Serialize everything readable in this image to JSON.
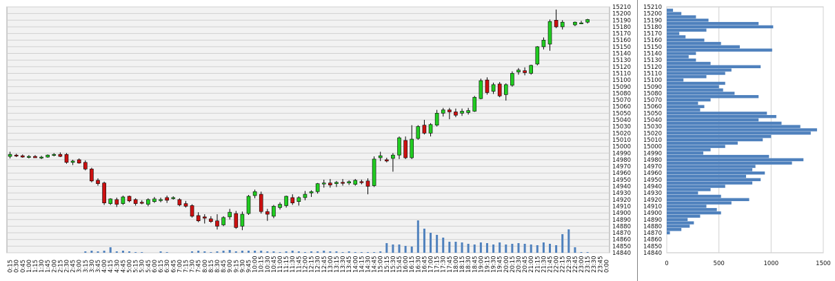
{
  "chart_data": [
    {
      "type": "candlestick",
      "interval": "15min",
      "yticks": [
        14840,
        14850,
        14860,
        14870,
        14880,
        14890,
        14900,
        14910,
        14920,
        14930,
        14940,
        14950,
        14960,
        14970,
        14980,
        14990,
        15000,
        15010,
        15020,
        15030,
        15040,
        15050,
        15060,
        15070,
        15080,
        15090,
        15100,
        15110,
        15120,
        15130,
        15140,
        15150,
        15160,
        15170,
        15180,
        15190,
        15200,
        15210
      ],
      "ylim": [
        14840,
        15210
      ],
      "xticks": [
        "0:15",
        "0:30",
        "0:45",
        "1:00",
        "1:15",
        "1:30",
        "1:45",
        "2:00",
        "2:15",
        "2:30",
        "2:45",
        "3:00",
        "3:15",
        "3:30",
        "3:45",
        "4:00",
        "4:15",
        "4:30",
        "4:45",
        "5:00",
        "5:15",
        "5:30",
        "5:45",
        "6:00",
        "6:15",
        "6:30",
        "6:45",
        "7:00",
        "7:15",
        "7:30",
        "7:45",
        "8:00",
        "8:15",
        "8:30",
        "8:45",
        "9:00",
        "9:15",
        "9:30",
        "9:45",
        "10:00",
        "10:15",
        "10:30",
        "10:45",
        "11:00",
        "11:15",
        "11:30",
        "11:45",
        "12:00",
        "12:15",
        "12:30",
        "12:45",
        "13:00",
        "13:15",
        "13:30",
        "13:45",
        "14:00",
        "14:15",
        "14:30",
        "14:45",
        "15:00",
        "15:15",
        "15:30",
        "15:45",
        "16:00",
        "16:15",
        "16:30",
        "16:45",
        "17:00",
        "17:15",
        "17:30",
        "17:45",
        "18:00",
        "18:15",
        "18:30",
        "18:45",
        "19:00",
        "19:15",
        "19:30",
        "19:45",
        "20:00",
        "20:15",
        "20:30",
        "20:45",
        "21:00",
        "21:15",
        "21:30",
        "21:45",
        "22:00",
        "22:15",
        "22:30",
        "22:45",
        "23:00",
        "23:15",
        "23:30",
        "23:45",
        "0:00"
      ],
      "grid": true,
      "up_color": "#22cc22",
      "down_color": "#cc1111",
      "volume_color": "#4f81bd",
      "candles": [
        {
          "o": 14985,
          "h": 14992,
          "l": 14982,
          "c": 14988
        },
        {
          "o": 14987,
          "h": 14989,
          "l": 14984,
          "c": 14986
        },
        {
          "o": 14986,
          "h": 14988,
          "l": 14983,
          "c": 14984
        },
        {
          "o": 14984,
          "h": 14987,
          "l": 14982,
          "c": 14985
        },
        {
          "o": 14985,
          "h": 14987,
          "l": 14983,
          "c": 14983
        },
        {
          "o": 14983,
          "h": 14986,
          "l": 14981,
          "c": 14984
        },
        {
          "o": 14984,
          "h": 14988,
          "l": 14983,
          "c": 14987
        },
        {
          "o": 14987,
          "h": 14990,
          "l": 14985,
          "c": 14988
        },
        {
          "o": 14988,
          "h": 14991,
          "l": 14984,
          "c": 14985
        },
        {
          "o": 14988,
          "h": 14990,
          "l": 14974,
          "c": 14976
        },
        {
          "o": 14976,
          "h": 14980,
          "l": 14972,
          "c": 14978
        },
        {
          "o": 14980,
          "h": 14982,
          "l": 14974,
          "c": 14975
        },
        {
          "o": 14976,
          "h": 14979,
          "l": 14964,
          "c": 14966
        },
        {
          "o": 14966,
          "h": 14968,
          "l": 14946,
          "c": 14948
        },
        {
          "o": 14949,
          "h": 14952,
          "l": 14941,
          "c": 14944
        },
        {
          "o": 14945,
          "h": 14947,
          "l": 14912,
          "c": 14915
        },
        {
          "o": 14914,
          "h": 14922,
          "l": 14912,
          "c": 14921
        },
        {
          "o": 14920,
          "h": 14923,
          "l": 14909,
          "c": 14913
        },
        {
          "o": 14914,
          "h": 14926,
          "l": 14912,
          "c": 14924
        },
        {
          "o": 14925,
          "h": 14926,
          "l": 14916,
          "c": 14918
        },
        {
          "o": 14920,
          "h": 14922,
          "l": 14911,
          "c": 14914
        },
        {
          "o": 14916,
          "h": 14919,
          "l": 14913,
          "c": 14915
        },
        {
          "o": 14913,
          "h": 14922,
          "l": 14910,
          "c": 14920
        },
        {
          "o": 14917,
          "h": 14924,
          "l": 14915,
          "c": 14921
        },
        {
          "o": 14919,
          "h": 14923,
          "l": 14916,
          "c": 14920
        },
        {
          "o": 14923,
          "h": 14926,
          "l": 14915,
          "c": 14919
        },
        {
          "o": 14922,
          "h": 14925,
          "l": 14920,
          "c": 14923
        },
        {
          "o": 14920,
          "h": 14922,
          "l": 14910,
          "c": 14912
        },
        {
          "o": 14914,
          "h": 14918,
          "l": 14908,
          "c": 14910
        },
        {
          "o": 14911,
          "h": 14913,
          "l": 14893,
          "c": 14895
        },
        {
          "o": 14896,
          "h": 14901,
          "l": 14886,
          "c": 14888
        },
        {
          "o": 14894,
          "h": 14898,
          "l": 14884,
          "c": 14892
        },
        {
          "o": 14891,
          "h": 14895,
          "l": 14885,
          "c": 14887
        },
        {
          "o": 14888,
          "h": 14898,
          "l": 14875,
          "c": 14880
        },
        {
          "o": 14882,
          "h": 14895,
          "l": 14880,
          "c": 14893
        },
        {
          "o": 14894,
          "h": 14906,
          "l": 14890,
          "c": 14901
        },
        {
          "o": 14899,
          "h": 14903,
          "l": 14876,
          "c": 14878
        },
        {
          "o": 14880,
          "h": 14902,
          "l": 14874,
          "c": 14898
        },
        {
          "o": 14899,
          "h": 14927,
          "l": 14897,
          "c": 14925
        },
        {
          "o": 14926,
          "h": 14935,
          "l": 14922,
          "c": 14932
        },
        {
          "o": 14928,
          "h": 14932,
          "l": 14899,
          "c": 14902
        },
        {
          "o": 14902,
          "h": 14906,
          "l": 14888,
          "c": 14898
        },
        {
          "o": 14895,
          "h": 14912,
          "l": 14892,
          "c": 14910
        },
        {
          "o": 14908,
          "h": 14916,
          "l": 14905,
          "c": 14913
        },
        {
          "o": 14911,
          "h": 14926,
          "l": 14908,
          "c": 14925
        },
        {
          "o": 14923,
          "h": 14928,
          "l": 14912,
          "c": 14915
        },
        {
          "o": 14917,
          "h": 14925,
          "l": 14911,
          "c": 14923
        },
        {
          "o": 14923,
          "h": 14933,
          "l": 14919,
          "c": 14928
        },
        {
          "o": 14930,
          "h": 14934,
          "l": 14924,
          "c": 14932
        },
        {
          "o": 14932,
          "h": 14945,
          "l": 14929,
          "c": 14944
        },
        {
          "o": 14944,
          "h": 14950,
          "l": 14938,
          "c": 14945
        },
        {
          "o": 14945,
          "h": 14951,
          "l": 14938,
          "c": 14942
        },
        {
          "o": 14944,
          "h": 14948,
          "l": 14939,
          "c": 14946
        },
        {
          "o": 14946,
          "h": 14951,
          "l": 14941,
          "c": 14945
        },
        {
          "o": 14945,
          "h": 14949,
          "l": 14942,
          "c": 14947
        },
        {
          "o": 14943,
          "h": 14951,
          "l": 14941,
          "c": 14949
        },
        {
          "o": 14947,
          "h": 14950,
          "l": 14943,
          "c": 14946
        },
        {
          "o": 14948,
          "h": 14952,
          "l": 14928,
          "c": 14940
        },
        {
          "o": 14941,
          "h": 14985,
          "l": 14939,
          "c": 14981
        },
        {
          "o": 14983,
          "h": 14992,
          "l": 14978,
          "c": 14986
        },
        {
          "o": 14980,
          "h": 14983,
          "l": 14976,
          "c": 14978
        },
        {
          "o": 14982,
          "h": 14990,
          "l": 14962,
          "c": 14987
        },
        {
          "o": 14987,
          "h": 15015,
          "l": 14981,
          "c": 15013
        },
        {
          "o": 15009,
          "h": 15015,
          "l": 14981,
          "c": 14983
        },
        {
          "o": 14983,
          "h": 15032,
          "l": 14981,
          "c": 15011
        },
        {
          "o": 15012,
          "h": 15032,
          "l": 15010,
          "c": 15030
        },
        {
          "o": 15032,
          "h": 15040,
          "l": 15018,
          "c": 15020
        },
        {
          "o": 15020,
          "h": 15035,
          "l": 15015,
          "c": 15033
        },
        {
          "o": 15032,
          "h": 15055,
          "l": 15030,
          "c": 15050
        },
        {
          "o": 15050,
          "h": 15058,
          "l": 15045,
          "c": 15055
        },
        {
          "o": 15055,
          "h": 15058,
          "l": 15041,
          "c": 15052
        },
        {
          "o": 15052,
          "h": 15057,
          "l": 15044,
          "c": 15047
        },
        {
          "o": 15050,
          "h": 15057,
          "l": 15046,
          "c": 15053
        },
        {
          "o": 15051,
          "h": 15058,
          "l": 15048,
          "c": 15054
        },
        {
          "o": 15053,
          "h": 15076,
          "l": 15052,
          "c": 15074
        },
        {
          "o": 15072,
          "h": 15102,
          "l": 15071,
          "c": 15099
        },
        {
          "o": 15100,
          "h": 15104,
          "l": 15078,
          "c": 15081
        },
        {
          "o": 15083,
          "h": 15096,
          "l": 15079,
          "c": 15093
        },
        {
          "o": 15094,
          "h": 15097,
          "l": 15074,
          "c": 15076
        },
        {
          "o": 15078,
          "h": 15095,
          "l": 15069,
          "c": 15093
        },
        {
          "o": 15092,
          "h": 15113,
          "l": 15090,
          "c": 15110
        },
        {
          "o": 15112,
          "h": 15118,
          "l": 15108,
          "c": 15115
        },
        {
          "o": 15114,
          "h": 15119,
          "l": 15107,
          "c": 15111
        },
        {
          "o": 15110,
          "h": 15123,
          "l": 15108,
          "c": 15122
        },
        {
          "o": 15124,
          "h": 15151,
          "l": 15122,
          "c": 15150
        },
        {
          "o": 15150,
          "h": 15164,
          "l": 15146,
          "c": 15160
        },
        {
          "o": 15154,
          "h": 15191,
          "l": 15144,
          "c": 15188
        },
        {
          "o": 15190,
          "h": 15206,
          "l": 15178,
          "c": 15180
        },
        {
          "o": 15180,
          "h": 15190,
          "l": 15176,
          "c": 15187
        },
        null,
        {
          "o": 15183,
          "h": 15188,
          "l": 15181,
          "c": 15187
        },
        {
          "o": 15185,
          "h": 15189,
          "l": 15184,
          "c": 15186
        },
        {
          "o": 15187,
          "h": 15192,
          "l": 15185,
          "c": 15191
        },
        null,
        null,
        null
      ],
      "volume": [
        0,
        0,
        0,
        0,
        0,
        0,
        0,
        0,
        0,
        0,
        0,
        0,
        2,
        3,
        2,
        3,
        8,
        2,
        3,
        2,
        1,
        1,
        0,
        0,
        2,
        1,
        0,
        0,
        0,
        2,
        3,
        2,
        1,
        2,
        3,
        4,
        2,
        3,
        3,
        3,
        3,
        2,
        2,
        1,
        2,
        3,
        2,
        1,
        2,
        2,
        3,
        2,
        2,
        1,
        2,
        1,
        1,
        1,
        1,
        2,
        14,
        12,
        12,
        10,
        9,
        47,
        35,
        29,
        26,
        22,
        16,
        16,
        15,
        13,
        12,
        15,
        14,
        12,
        15,
        12,
        13,
        14,
        13,
        12,
        11,
        15,
        13,
        11,
        27,
        34,
        8,
        1,
        1,
        0,
        0,
        0
      ]
    },
    {
      "type": "bar",
      "orientation": "horizontal",
      "title": "",
      "xticks": [
        0,
        500,
        1000,
        1500
      ],
      "xlim": [
        0,
        1500
      ],
      "yticks": [
        14840,
        14850,
        14860,
        14870,
        14880,
        14890,
        14900,
        14910,
        14920,
        14930,
        14940,
        14950,
        14960,
        14970,
        14980,
        14990,
        15000,
        15010,
        15020,
        15030,
        15040,
        15050,
        15060,
        15070,
        15080,
        15090,
        15100,
        15110,
        15120,
        15130,
        15140,
        15150,
        15160,
        15170,
        15180,
        15190,
        15200,
        15210
      ],
      "ylim": [
        14840,
        15210
      ],
      "bar_color": "#4f81bd",
      "grid": true,
      "profile": [
        {
          "y": 14870,
          "v": 30
        },
        {
          "y": 14875,
          "v": 140
        },
        {
          "y": 14880,
          "v": 220
        },
        {
          "y": 14885,
          "v": 260
        },
        {
          "y": 14890,
          "v": 200
        },
        {
          "y": 14895,
          "v": 320
        },
        {
          "y": 14900,
          "v": 520
        },
        {
          "y": 14905,
          "v": 480
        },
        {
          "y": 14910,
          "v": 380
        },
        {
          "y": 14915,
          "v": 620
        },
        {
          "y": 14920,
          "v": 790
        },
        {
          "y": 14925,
          "v": 520
        },
        {
          "y": 14930,
          "v": 300
        },
        {
          "y": 14935,
          "v": 420
        },
        {
          "y": 14940,
          "v": 560
        },
        {
          "y": 14945,
          "v": 820
        },
        {
          "y": 14950,
          "v": 900
        },
        {
          "y": 14955,
          "v": 760
        },
        {
          "y": 14960,
          "v": 940
        },
        {
          "y": 14965,
          "v": 820
        },
        {
          "y": 14970,
          "v": 850
        },
        {
          "y": 14975,
          "v": 1200
        },
        {
          "y": 14980,
          "v": 1310
        },
        {
          "y": 14985,
          "v": 980
        },
        {
          "y": 14990,
          "v": 350
        },
        {
          "y": 14995,
          "v": 420
        },
        {
          "y": 15000,
          "v": 560
        },
        {
          "y": 15005,
          "v": 680
        },
        {
          "y": 15010,
          "v": 920
        },
        {
          "y": 15015,
          "v": 1000
        },
        {
          "y": 15020,
          "v": 1380
        },
        {
          "y": 15025,
          "v": 1440
        },
        {
          "y": 15030,
          "v": 1280
        },
        {
          "y": 15035,
          "v": 1100
        },
        {
          "y": 15040,
          "v": 880
        },
        {
          "y": 15045,
          "v": 1050
        },
        {
          "y": 15050,
          "v": 960
        },
        {
          "y": 15055,
          "v": 320
        },
        {
          "y": 15060,
          "v": 360
        },
        {
          "y": 15065,
          "v": 300
        },
        {
          "y": 15070,
          "v": 420
        },
        {
          "y": 15075,
          "v": 880
        },
        {
          "y": 15080,
          "v": 650
        },
        {
          "y": 15085,
          "v": 540
        },
        {
          "y": 15090,
          "v": 500
        },
        {
          "y": 15095,
          "v": 560
        },
        {
          "y": 15100,
          "v": 160
        },
        {
          "y": 15105,
          "v": 380
        },
        {
          "y": 15110,
          "v": 560
        },
        {
          "y": 15115,
          "v": 620
        },
        {
          "y": 15120,
          "v": 900
        },
        {
          "y": 15125,
          "v": 420
        },
        {
          "y": 15130,
          "v": 280
        },
        {
          "y": 15135,
          "v": 210
        },
        {
          "y": 15140,
          "v": 280
        },
        {
          "y": 15145,
          "v": 1010
        },
        {
          "y": 15150,
          "v": 700
        },
        {
          "y": 15155,
          "v": 520
        },
        {
          "y": 15160,
          "v": 360
        },
        {
          "y": 15165,
          "v": 180
        },
        {
          "y": 15170,
          "v": 120
        },
        {
          "y": 15175,
          "v": 380
        },
        {
          "y": 15180,
          "v": 1020
        },
        {
          "y": 15185,
          "v": 880
        },
        {
          "y": 15190,
          "v": 400
        },
        {
          "y": 15195,
          "v": 280
        },
        {
          "y": 15200,
          "v": 140
        },
        {
          "y": 15205,
          "v": 60
        }
      ]
    }
  ]
}
